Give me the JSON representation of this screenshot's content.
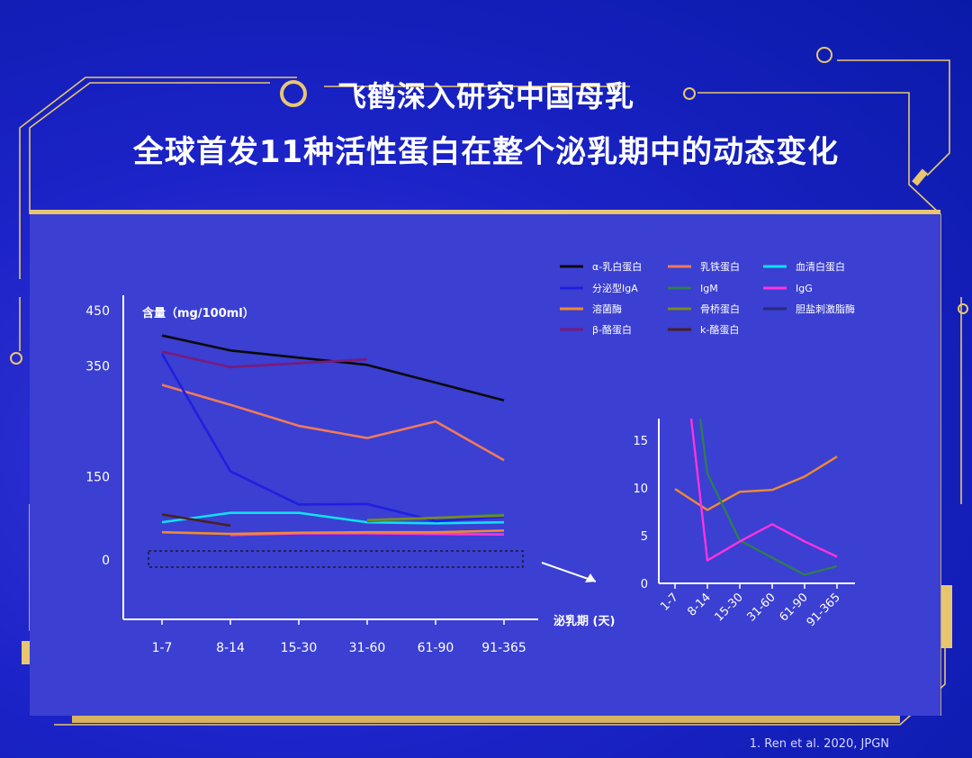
{
  "page": {
    "title_line1": "飞鹤深入研究中国母乳",
    "title_line2": "全球首发11种活性蛋白在整个泌乳期中的动态变化",
    "source": "1. Ren et al. 2020, JPGN",
    "colors": {
      "background": "#1c23c8",
      "panel": "#3b3fd2",
      "frame_gold": "#e8c670"
    }
  },
  "chart_data": [
    {
      "type": "line",
      "ylabel": "含量（mg/100ml）",
      "xlabel": "泌乳期 (天)",
      "categories": [
        "1-7",
        "8-14",
        "15-30",
        "31-60",
        "61-90",
        "91-365"
      ],
      "y_tick_labels": [
        "450",
        "350",
        "150",
        "0"
      ],
      "y_tick_values": [
        450,
        350,
        150,
        0
      ],
      "legend_position": "top-right",
      "series": [
        {
          "name": "α-乳白蛋白",
          "color": "#0a0a0a",
          "values": [
            405,
            378,
            365,
            352,
            320,
            288
          ]
        },
        {
          "name": "乳铁蛋白",
          "color": "#f07a5a",
          "values": [
            316,
            280,
            242,
            220,
            250,
            180
          ]
        },
        {
          "name": "血清白蛋白",
          "color": "#10e0f0",
          "values": [
            68,
            85,
            85,
            68,
            66,
            68
          ]
        },
        {
          "name": "分泌型IgA",
          "color": "#1f1fe0",
          "values": [
            372,
            160,
            100,
            101,
            70,
            78
          ]
        },
        {
          "name": "IgM",
          "color": "#2e7d52",
          "values": [
            null,
            null,
            null,
            70,
            76,
            82
          ]
        },
        {
          "name": "IgG",
          "color": "#ff33dd",
          "values": [
            null,
            45,
            48,
            48,
            47,
            46
          ]
        },
        {
          "name": "溶菌酶",
          "color": "#f08a30",
          "values": [
            50,
            47,
            49,
            50,
            50,
            53
          ]
        },
        {
          "name": "骨桥蛋白",
          "color": "#7a8a20",
          "values": [
            null,
            null,
            null,
            72,
            76,
            80
          ]
        },
        {
          "name": "胆盐刺激脂酶",
          "color": "#2a2a80",
          "values": [
            null,
            null,
            null,
            null,
            null,
            null
          ]
        },
        {
          "name": "β-酪蛋白",
          "color": "#7a1a7a",
          "values": [
            376,
            348,
            355,
            362,
            null,
            null
          ]
        },
        {
          "name": "k-酪蛋白",
          "color": "#4a2020",
          "values": [
            82,
            62,
            null,
            null,
            null,
            null
          ]
        }
      ]
    },
    {
      "type": "line",
      "categories": [
        "1-7",
        "8-14",
        "15-30",
        "31-60",
        "61-90",
        "91-365"
      ],
      "y_tick_values": [
        0,
        5,
        10,
        15
      ],
      "ylim": [
        0,
        17
      ],
      "series": [
        {
          "name": "溶菌酶",
          "color": "#f08a30",
          "values": [
            9.9,
            7.7,
            9.6,
            9.8,
            11.2,
            13.3
          ]
        },
        {
          "name": "IgM",
          "color": "#2e7d52",
          "values": [
            null,
            11.5,
            4.5,
            2.7,
            0.9,
            1.8
          ]
        },
        {
          "name": "IgG",
          "color": "#ff33dd",
          "values": [
            null,
            2.4,
            4.4,
            6.2,
            4.4,
            2.8
          ]
        }
      ]
    }
  ]
}
